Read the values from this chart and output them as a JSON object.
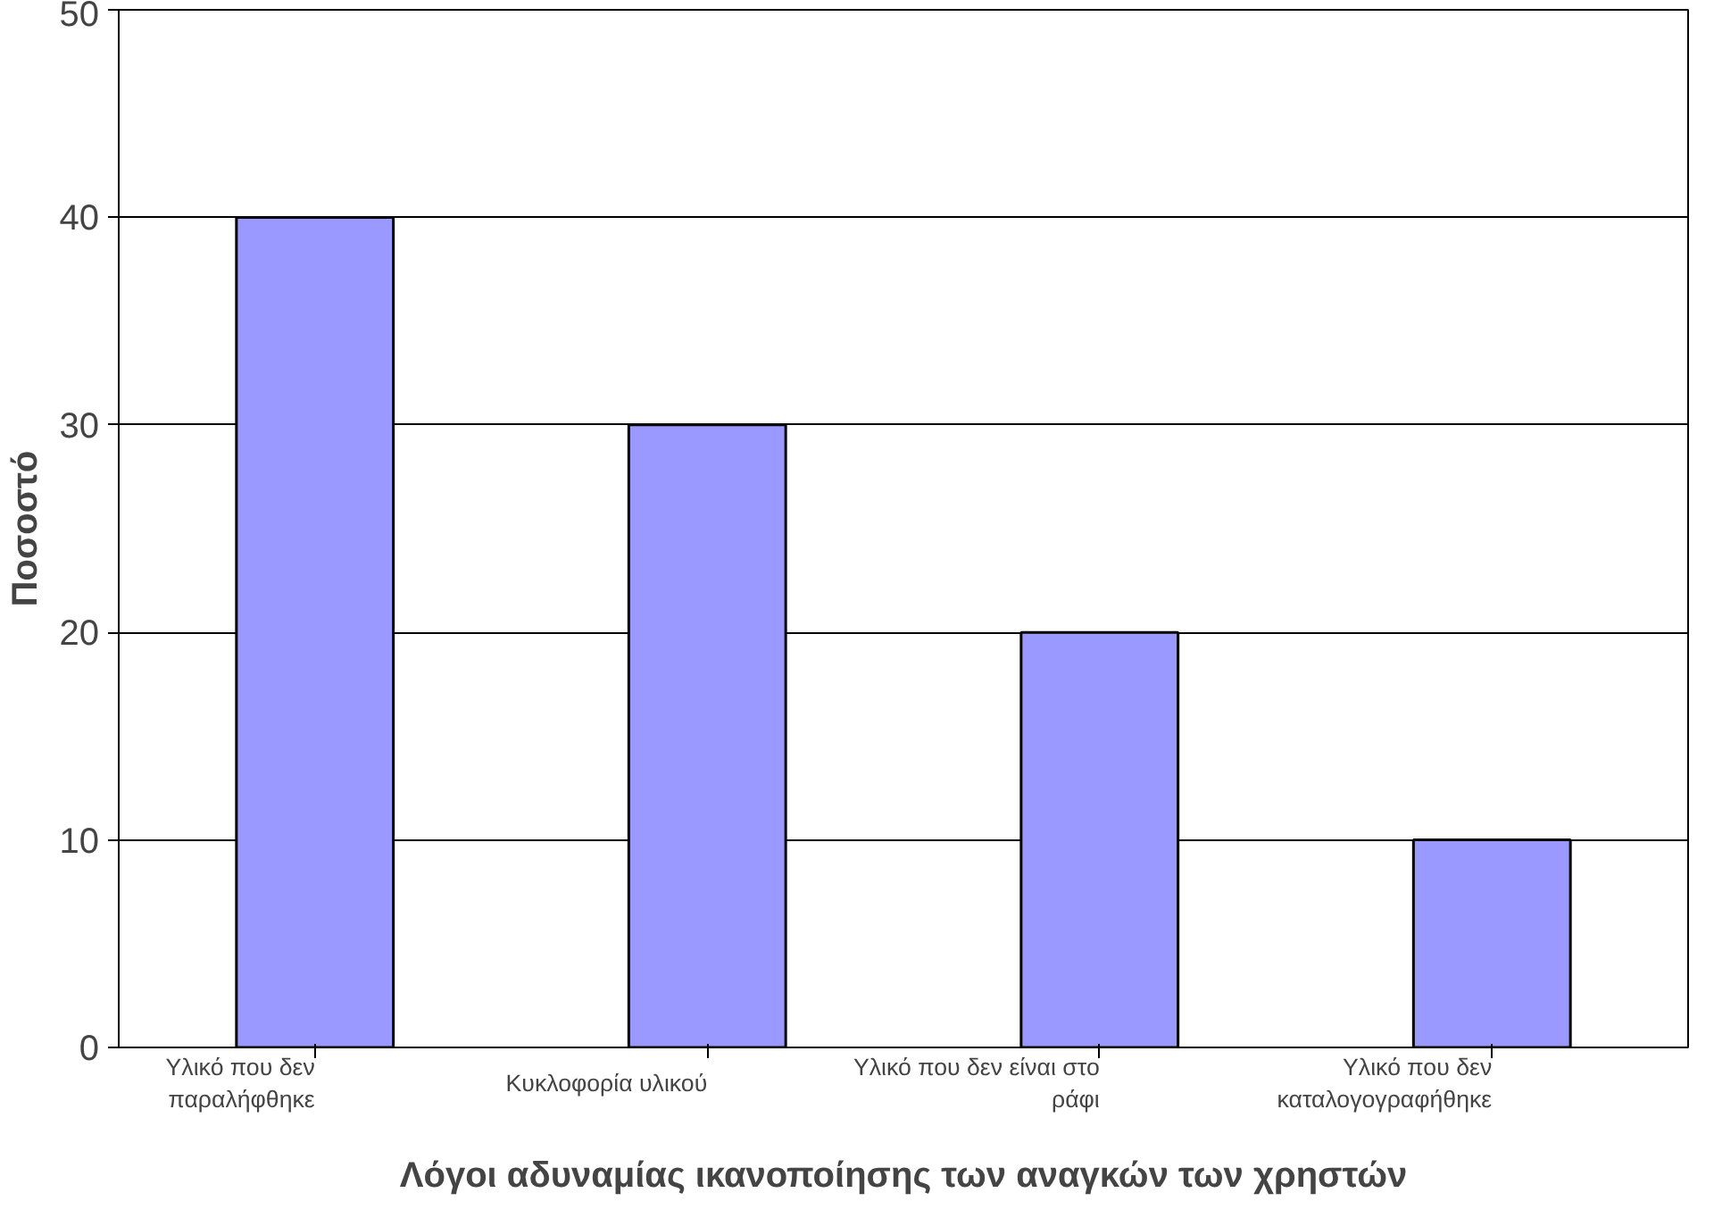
{
  "chart_data": {
    "type": "bar",
    "xlabel": "Λόγοι αδυναμίας ικανοποίησης των αναγκών των χρηστών",
    "ylabel": "Ποσοστό",
    "categories": [
      "Υλικό που δεν παραλήφθηκε",
      "Κυκλοφορία υλικού",
      "Υλικό που δεν είναι στο ράφι",
      "Υλικό που δεν καταλογογραφήθηκε"
    ],
    "values": [
      40,
      30,
      20,
      10
    ],
    "color": "#9999ff",
    "ylim": [
      0,
      50
    ],
    "yticks": [
      0,
      10,
      20,
      30,
      40,
      50
    ],
    "grid": "y"
  }
}
